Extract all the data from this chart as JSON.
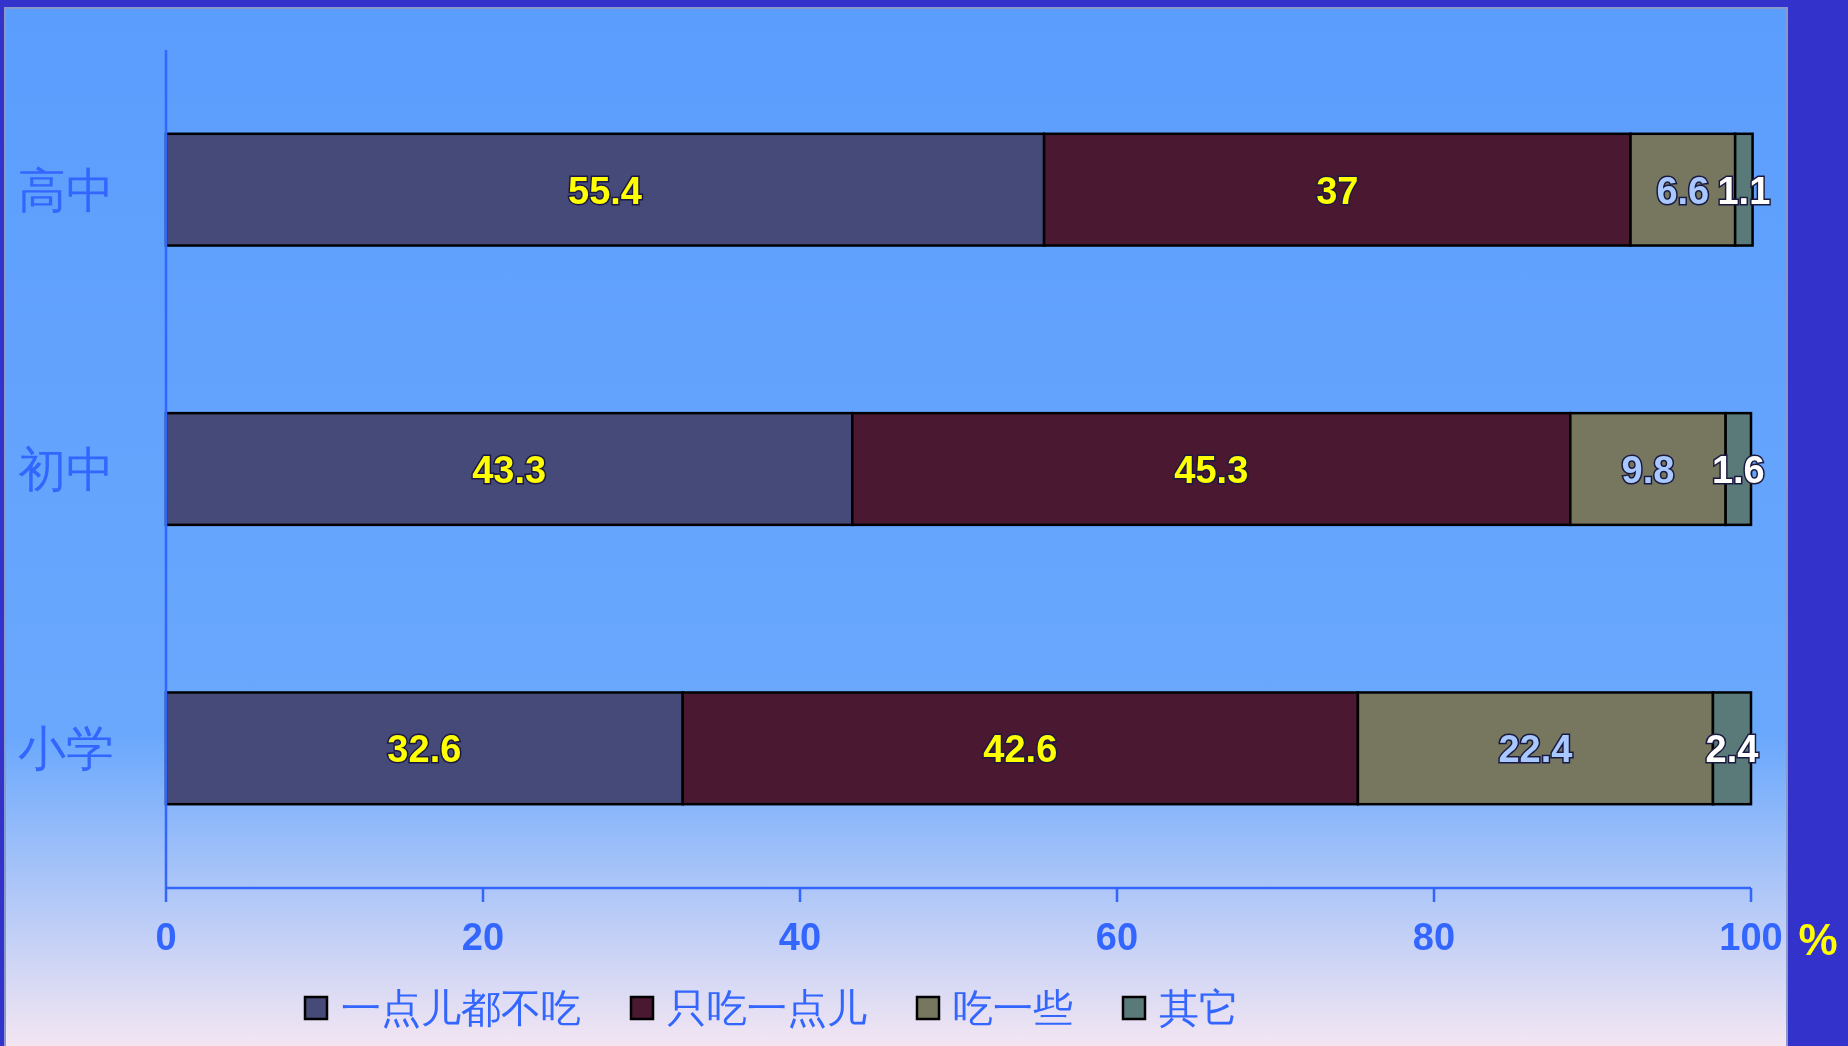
{
  "chart_data": {
    "type": "bar",
    "orientation": "horizontal",
    "stacked": true,
    "categories": [
      "高中",
      "初中",
      "小学"
    ],
    "series": [
      {
        "name": "一点儿都不吃",
        "color": "#464a78",
        "values": [
          55.4,
          43.3,
          32.6
        ]
      },
      {
        "name": "只吃一点儿",
        "color": "#4a1830",
        "values": [
          37,
          45.3,
          42.6
        ]
      },
      {
        "name": "吃一些",
        "color": "#76775e",
        "values": [
          6.6,
          9.8,
          22.4
        ]
      },
      {
        "name": "其它",
        "color": "#5a7a7a",
        "values": [
          1.1,
          1.6,
          2.4
        ]
      }
    ],
    "xlim": [
      0,
      100
    ],
    "xticks": [
      0,
      20,
      40,
      60,
      80,
      100
    ],
    "xlabel": "%",
    "data_labels": true,
    "legend": "bottom",
    "grid": false
  }
}
